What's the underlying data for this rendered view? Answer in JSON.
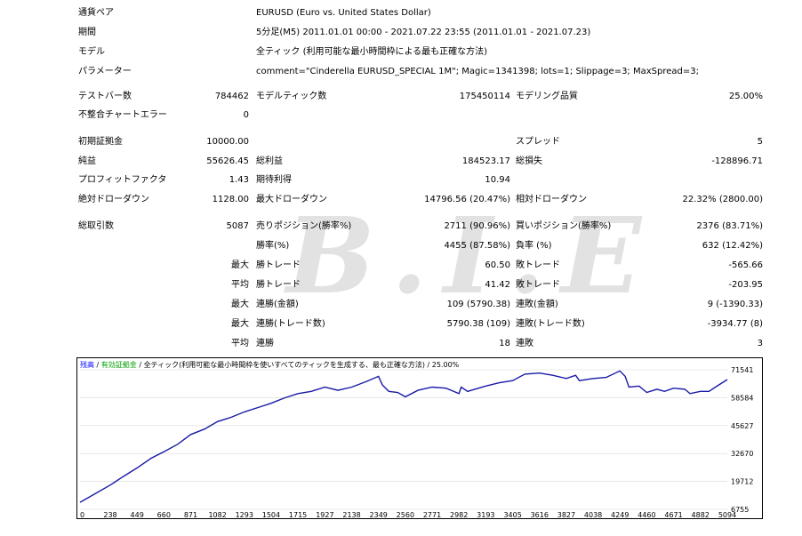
{
  "summary": {
    "symbol_label": "通貨ペア",
    "symbol_value": "EURUSD (Euro vs. United States Dollar)",
    "period_label": "期間",
    "period_value": "5分足(M5) 2011.01.01 00:00 - 2021.07.22 23:55 (2011.01.01 - 2021.07.23)",
    "model_label": "モデル",
    "model_value": "全ティック (利用可能な最小時間枠による最も正確な方法)",
    "params_label": "パラメーター",
    "params_value": "comment=\"Cinderella EURUSD_SPECIAL 1M\"; Magic=1341398; lots=1; Slippage=3; MaxSpread=3;"
  },
  "stats": {
    "bars_label": "テストバー数",
    "bars_value": "784462",
    "ticks_label": "モデルティック数",
    "ticks_value": "175450114",
    "quality_label": "モデリング品質",
    "quality_value": "25.00%",
    "mismatch_label": "不整合チャートエラー",
    "mismatch_value": "0",
    "deposit_label": "初期証拠金",
    "deposit_value": "10000.00",
    "spread_label": "スプレッド",
    "spread_value": "5",
    "net_label": "純益",
    "net_value": "55626.45",
    "gross_profit_label": "総利益",
    "gross_profit_value": "184523.17",
    "gross_loss_label": "総損失",
    "gross_loss_value": "-128896.71",
    "pf_label": "プロフィットファクタ",
    "pf_value": "1.43",
    "expected_label": "期待利得",
    "expected_value": "10.94",
    "abs_dd_label": "絶対ドローダウン",
    "abs_dd_value": "1128.00",
    "max_dd_label": "最大ドローダウン",
    "max_dd_value": "14796.56 (20.47%)",
    "rel_dd_label": "相対ドローダウン",
    "rel_dd_value": "22.32% (2800.00)",
    "trades_label": "総取引数",
    "trades_value": "5087",
    "short_label": "売りポジション(勝率%)",
    "short_value": "2711 (90.96%)",
    "long_label": "買いポジション(勝率%)",
    "long_value": "2376 (83.71%)",
    "win_rate_label": "勝率(%)",
    "win_rate_value": "4455 (87.58%)",
    "loss_rate_label": "負率 (%)",
    "loss_rate_value": "632 (12.42%)",
    "max_label": "最大",
    "avg_label": "平均",
    "largest_win_label": "勝トレード",
    "largest_win_value": "60.50",
    "largest_loss_label": "敗トレード",
    "largest_loss_value": "-565.66",
    "avg_win_label": "勝トレード",
    "avg_win_value": "41.42",
    "avg_loss_label": "敗トレード",
    "avg_loss_value": "-203.95",
    "cons_wins_money_label": "連勝(金額)",
    "cons_wins_money_value": "109 (5790.38)",
    "cons_loss_money_label": "連敗(金額)",
    "cons_loss_money_value": "9 (-1390.33)",
    "cons_wins_count_label": "連勝(トレード数)",
    "cons_wins_count_value": "5790.38 (109)",
    "cons_loss_count_label": "連敗(トレード数)",
    "cons_loss_count_value": "-3934.77 (8)",
    "avg_cons_wins_label": "連勝",
    "avg_cons_wins_value": "18",
    "avg_cons_loss_label": "連敗",
    "avg_cons_loss_value": "3"
  },
  "watermark": "B.I.E",
  "chart_data": {
    "type": "line",
    "legend": {
      "balance": "残高",
      "sep1": " / ",
      "equity": "有効証拠金",
      "sep2": " / ",
      "model": "全ティック(利用可能な最小時間枠を使いすべてのティックを生成する、最も正確な方法)",
      "sep3": " / ",
      "quality": "25.00%"
    },
    "x_ticks": [
      "0",
      "238",
      "449",
      "660",
      "871",
      "1082",
      "1293",
      "1504",
      "1715",
      "1927",
      "2138",
      "2349",
      "2560",
      "2771",
      "2982",
      "3193",
      "3405",
      "3616",
      "3827",
      "4038",
      "4249",
      "4460",
      "4671",
      "4882",
      "5094"
    ],
    "y_ticks": [
      "71541",
      "58584",
      "45627",
      "32670",
      "19712",
      "6755"
    ],
    "xlim": [
      0,
      5094
    ],
    "ylim": [
      6755,
      71541
    ],
    "colors": {
      "line": "#1a1aa6",
      "grid": "#d8d8d8",
      "balance": "#0000ff",
      "equity": "#00a000",
      "model": "#000000"
    },
    "series": [
      {
        "x": [
          0,
          120,
          238,
          340,
          449,
          560,
          660,
          770,
          871,
          980,
          1082,
          1190,
          1293,
          1400,
          1504,
          1610,
          1715,
          1820,
          1927,
          2030,
          2138,
          2250,
          2349,
          2380,
          2430,
          2500,
          2560,
          2660,
          2771,
          2880,
          2982,
          3000,
          3050,
          3193,
          3300,
          3405,
          3500,
          3616,
          3720,
          3827,
          3900,
          3930,
          4038,
          4140,
          4249,
          4290,
          4320,
          4400,
          4460,
          4540,
          4600,
          4671,
          4760,
          4800,
          4882,
          4950,
          5000,
          5094
        ],
        "y": [
          10000,
          14000,
          18000,
          22000,
          26000,
          30500,
          33500,
          37000,
          41500,
          44000,
          47500,
          49500,
          52000,
          54000,
          56000,
          58500,
          60500,
          61500,
          63500,
          62000,
          63500,
          66000,
          68500,
          64500,
          61500,
          61000,
          59000,
          62000,
          63500,
          63000,
          60500,
          63500,
          61500,
          64000,
          65500,
          66500,
          69500,
          70000,
          69000,
          67500,
          69000,
          66500,
          67500,
          68000,
          71000,
          68500,
          63500,
          64000,
          61000,
          62500,
          61500,
          63000,
          62500,
          60500,
          61500,
          61500,
          63500,
          67000
        ]
      }
    ]
  }
}
